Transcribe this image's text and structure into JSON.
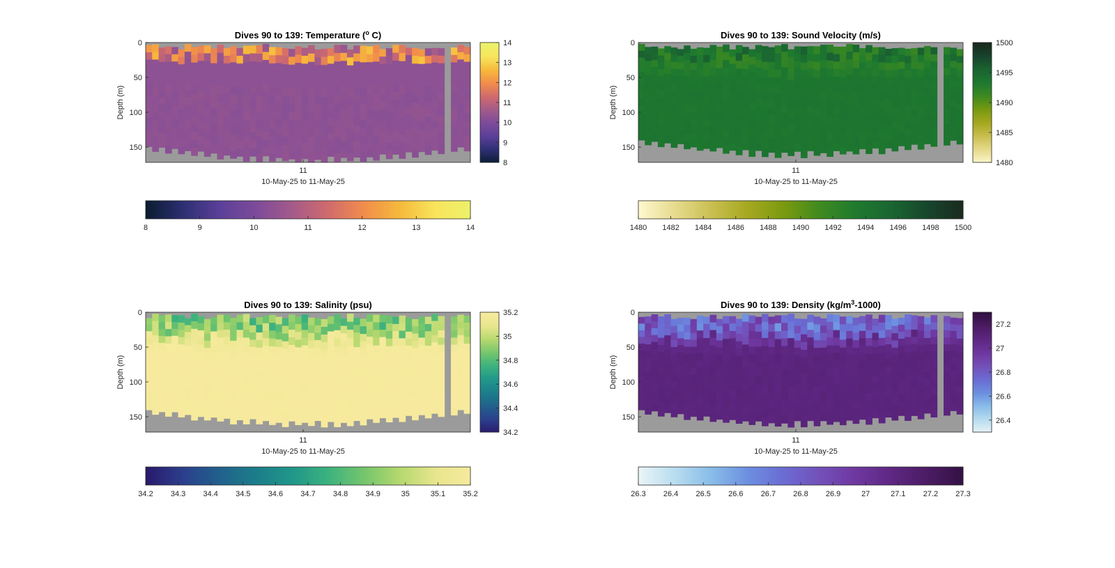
{
  "chart_data": [
    {
      "type": "heatmap",
      "title": "Dives 90 to 139: Temperature (",
      "title_sup": "o",
      "title_end": " C)",
      "ylabel": "Depth (m)",
      "xlabel": "10-May-25 to 11-May-25",
      "x_ticks": [
        "11"
      ],
      "y_ticks": [
        "0",
        "50",
        "100",
        "150"
      ],
      "ylim": [
        0,
        172
      ],
      "y_reversed": true,
      "variable": "temperature",
      "clim": [
        8,
        14
      ],
      "colormap": [
        "#0b1d33",
        "#2d2f72",
        "#5a3f99",
        "#7c4b9a",
        "#a25a8a",
        "#d06a6e",
        "#f18c4c",
        "#f6b93b",
        "#f8e55d",
        "#ecf26a"
      ],
      "colorbar_ticks": [
        "14",
        "13",
        "12",
        "11",
        "10",
        "9",
        "8"
      ],
      "h_colorbar_ticks": [
        "8",
        "9",
        "10",
        "11",
        "12",
        "13",
        "14"
      ],
      "no_data_color": "#9b9b9b",
      "surface_value_range": [
        10.3,
        12.8
      ],
      "interior_value": 10.3,
      "bottom_depth_range": [
        140,
        168
      ],
      "gap_dive_fraction": 0.925
    },
    {
      "type": "heatmap",
      "title": "Dives 90 to 139: Sound Velocity (m/s)",
      "title_sup": "",
      "title_end": "",
      "ylabel": "Depth (m)",
      "xlabel": "10-May-25 to 11-May-25",
      "x_ticks": [
        "11"
      ],
      "y_ticks": [
        "0",
        "50",
        "100",
        "150"
      ],
      "ylim": [
        0,
        172
      ],
      "y_reversed": true,
      "variable": "sound velocity",
      "clim": [
        1480,
        1500
      ],
      "colormap": [
        "#fdf7cc",
        "#e6da8c",
        "#c9bf51",
        "#a6a820",
        "#7a9a0f",
        "#3f8a1f",
        "#1e7a2f",
        "#1a6531",
        "#17452c",
        "#1a2a1e"
      ],
      "colorbar_ticks": [
        "1500",
        "1495",
        "1490",
        "1485",
        "1480"
      ],
      "h_colorbar_ticks": [
        "1480",
        "1482",
        "1484",
        "1486",
        "1488",
        "1490",
        "1492",
        "1494",
        "1496",
        "1498",
        "1500"
      ],
      "no_data_color": "#9b9b9b",
      "surface_value_range": [
        1491.5,
        1496
      ],
      "interior_value": 1493.8,
      "bottom_depth_range": [
        130,
        160
      ],
      "gap_dive_fraction": 0.925
    },
    {
      "type": "heatmap",
      "title": "Dives 90 to 139: Salinity (psu)",
      "title_sup": "",
      "title_end": "",
      "ylabel": "Depth (m)",
      "xlabel": "10-May-25 to 11-May-25",
      "x_ticks": [
        "11"
      ],
      "y_ticks": [
        "0",
        "50",
        "100",
        "150"
      ],
      "ylim": [
        0,
        172
      ],
      "y_reversed": true,
      "variable": "salinity",
      "clim": [
        34.2,
        35.2
      ],
      "colormap": [
        "#2a1a6c",
        "#2b3f8d",
        "#21608c",
        "#1c7d8a",
        "#20968a",
        "#3bb17f",
        "#73c56c",
        "#b4d86e",
        "#e8e68d",
        "#f7ea9e"
      ],
      "colorbar_ticks": [
        "35.2",
        "35",
        "34.8",
        "34.6",
        "34.4",
        "34.2"
      ],
      "h_colorbar_ticks": [
        "34.2",
        "34.3",
        "34.4",
        "34.5",
        "34.6",
        "34.7",
        "34.8",
        "34.9",
        "35",
        "35.1",
        "35.2"
      ],
      "no_data_color": "#9b9b9b",
      "surface_value_range": [
        34.75,
        35.05
      ],
      "interior_value": 35.2,
      "bottom_depth_range": [
        130,
        160
      ],
      "gap_dive_fraction": 0.925
    },
    {
      "type": "heatmap",
      "title": "Dives 90 to 139: Density (kg/m",
      "title_sup": "3",
      "title_end": "-1000)",
      "ylabel": "Depth (m)",
      "xlabel": "10-May-25 to 11-May-25",
      "x_ticks": [
        "11"
      ],
      "y_ticks": [
        "0",
        "50",
        "100",
        "150"
      ],
      "ylim": [
        0,
        172
      ],
      "y_reversed": true,
      "variable": "density",
      "clim": [
        26.3,
        27.3
      ],
      "colormap": [
        "#e8f4f6",
        "#b7dcef",
        "#89bce9",
        "#6c8fe0",
        "#6b6cd3",
        "#7350b8",
        "#6e379f",
        "#5e2783",
        "#4b1b63",
        "#331143"
      ],
      "colorbar_ticks": [
        "27.2",
        "27",
        "26.8",
        "26.6",
        "26.4"
      ],
      "h_colorbar_ticks": [
        "26.3",
        "26.4",
        "26.5",
        "26.6",
        "26.7",
        "26.8",
        "26.9",
        "27",
        "27.1",
        "27.2",
        "27.3"
      ],
      "no_data_color": "#9b9b9b",
      "surface_value_range": [
        26.6,
        26.95
      ],
      "interior_value": 27.1,
      "bottom_depth_range": [
        130,
        160
      ],
      "gap_dive_fraction": 0.925
    }
  ]
}
